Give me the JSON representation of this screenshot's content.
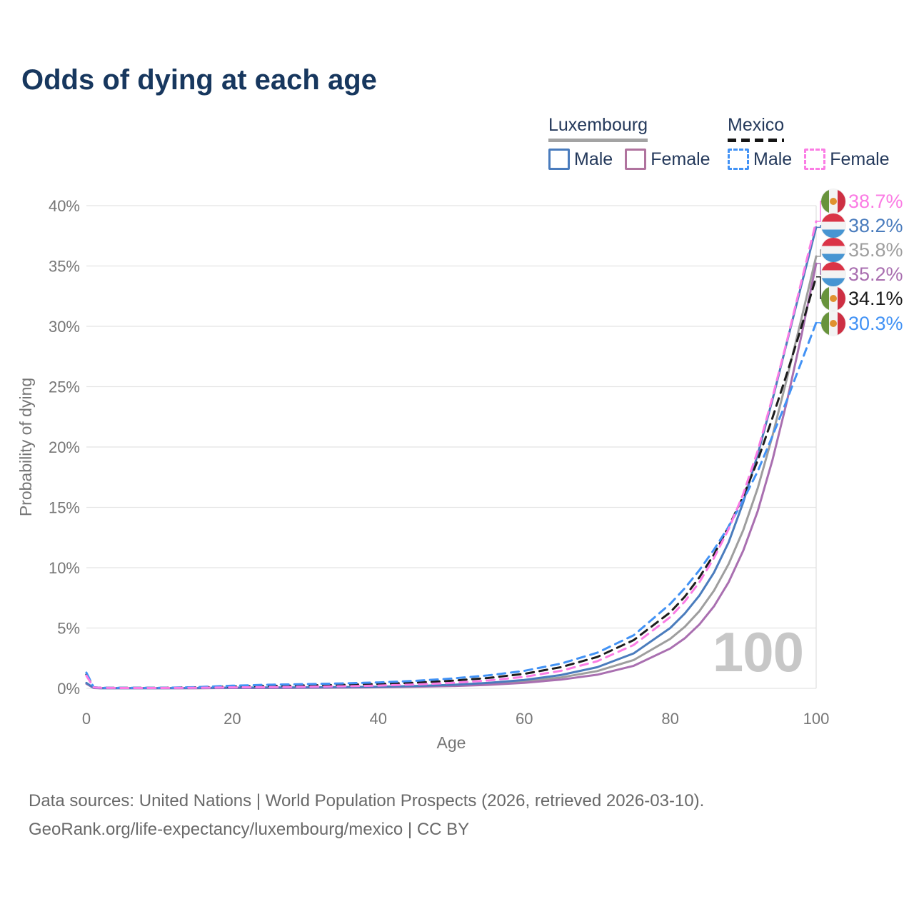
{
  "title": "Odds of dying at each age",
  "legend": {
    "groups": [
      {
        "id": "luxembourg",
        "title": "Luxembourg",
        "line_style": "solid",
        "line_color": "#a3a3a3",
        "items": [
          {
            "label": "Male",
            "color": "#4a7cbd",
            "box_style": "solid"
          },
          {
            "label": "Female",
            "color": "#b0739e",
            "box_style": "solid"
          }
        ]
      },
      {
        "id": "mexico",
        "title": "Mexico",
        "line_style": "dashed",
        "line_color": "#151515",
        "items": [
          {
            "label": "Male",
            "color": "#4292f5",
            "box_style": "dashed"
          },
          {
            "label": "Female",
            "color": "#fb7ce4",
            "box_style": "dashed"
          }
        ]
      }
    ]
  },
  "chart_data": {
    "type": "line",
    "title": "Odds of dying at each age",
    "xlabel": "Age",
    "ylabel": "Probability of dying",
    "xlim": [
      0,
      100
    ],
    "ylim": [
      0,
      40
    ],
    "x_ticks": [
      0,
      20,
      40,
      60,
      80,
      100
    ],
    "y_ticks": [
      "0%",
      "5%",
      "10%",
      "15%",
      "20%",
      "25%",
      "30%",
      "35%",
      "40%"
    ],
    "grid": "horizontal",
    "legend_position": "top-right",
    "age_indicator_label": "100",
    "ages": [
      0,
      1,
      2,
      5,
      10,
      15,
      20,
      25,
      30,
      35,
      40,
      45,
      50,
      55,
      60,
      65,
      70,
      75,
      80,
      82,
      84,
      86,
      88,
      90,
      92,
      94,
      96,
      98,
      100
    ],
    "series": [
      {
        "id": "mexico-female",
        "name": "Mexico Female",
        "country": "mexico",
        "sex": "female",
        "style": "dashed",
        "color": "#fb7ce4",
        "end_label": "38.7%",
        "values": [
          1.05,
          0.07,
          0.04,
          0.03,
          0.03,
          0.05,
          0.08,
          0.1,
          0.13,
          0.17,
          0.23,
          0.32,
          0.45,
          0.65,
          0.95,
          1.45,
          2.25,
          3.6,
          5.9,
          7.2,
          8.8,
          10.8,
          13.2,
          16.1,
          19.7,
          24.1,
          28.8,
          33.8,
          38.7
        ]
      },
      {
        "id": "luxembourg-male",
        "name": "Luxembourg Male",
        "country": "luxembourg",
        "sex": "male",
        "style": "solid",
        "color": "#4a7cbd",
        "end_label": "38.2%",
        "values": [
          0.45,
          0.04,
          0.02,
          0.01,
          0.01,
          0.03,
          0.06,
          0.07,
          0.08,
          0.1,
          0.13,
          0.19,
          0.29,
          0.45,
          0.7,
          1.1,
          1.75,
          2.9,
          5.0,
          6.2,
          7.7,
          9.6,
          12.1,
          15.4,
          19.4,
          23.9,
          28.7,
          33.5,
          38.2
        ]
      },
      {
        "id": "luxembourg-both",
        "name": "Luxembourg Both sexes",
        "country": "luxembourg",
        "sex": "both",
        "style": "solid",
        "color": "#9e9e9e",
        "end_label": "35.8%",
        "values": [
          0.42,
          0.03,
          0.02,
          0.01,
          0.01,
          0.02,
          0.04,
          0.05,
          0.06,
          0.08,
          0.11,
          0.16,
          0.24,
          0.37,
          0.57,
          0.9,
          1.43,
          2.35,
          4.1,
          5.1,
          6.4,
          8.1,
          10.3,
          13.1,
          16.6,
          20.9,
          25.7,
          30.7,
          35.8
        ]
      },
      {
        "id": "luxembourg-female",
        "name": "Luxembourg Female",
        "country": "luxembourg",
        "sex": "female",
        "style": "solid",
        "color": "#a96fb0",
        "end_label": "35.2%",
        "values": [
          0.38,
          0.03,
          0.02,
          0.01,
          0.01,
          0.02,
          0.03,
          0.03,
          0.04,
          0.06,
          0.09,
          0.13,
          0.19,
          0.29,
          0.46,
          0.72,
          1.13,
          1.87,
          3.3,
          4.15,
          5.3,
          6.8,
          8.8,
          11.4,
          14.7,
          18.9,
          23.8,
          29.3,
          35.2
        ]
      },
      {
        "id": "mexico-both",
        "name": "Mexico Both sexes",
        "country": "mexico",
        "sex": "both",
        "style": "dashed",
        "color": "#1c1c1c",
        "end_label": "34.1%",
        "values": [
          1.15,
          0.08,
          0.05,
          0.04,
          0.04,
          0.08,
          0.15,
          0.2,
          0.24,
          0.29,
          0.36,
          0.47,
          0.63,
          0.86,
          1.2,
          1.75,
          2.6,
          4.0,
          6.3,
          7.6,
          9.2,
          11.1,
          13.4,
          15.9,
          18.9,
          22.4,
          26.1,
          30.0,
          34.1
        ]
      },
      {
        "id": "mexico-male",
        "name": "Mexico Male",
        "country": "mexico",
        "sex": "male",
        "style": "dashed",
        "color": "#4292f5",
        "end_label": "30.3%",
        "values": [
          1.3,
          0.09,
          0.05,
          0.04,
          0.04,
          0.1,
          0.22,
          0.3,
          0.35,
          0.41,
          0.49,
          0.62,
          0.81,
          1.07,
          1.45,
          2.05,
          2.95,
          4.4,
          7.0,
          8.3,
          9.8,
          11.5,
          13.4,
          15.6,
          18.0,
          20.9,
          23.9,
          27.1,
          30.3
        ]
      }
    ]
  },
  "footer": {
    "line1": "Data sources: United Nations | World Population Prospects (2026, retrieved 2026-03-10).",
    "line2": "GeoRank.org/life-expectancy/luxembourg/mexico | CC BY"
  }
}
